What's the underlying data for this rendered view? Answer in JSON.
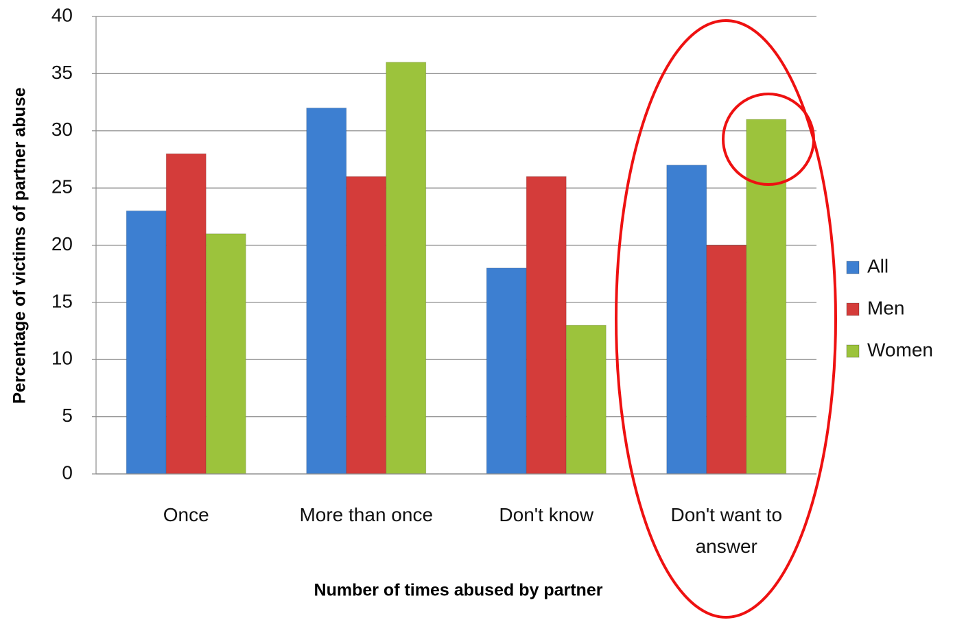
{
  "chart_data": {
    "type": "bar",
    "x_label": "Number of times abused by partner",
    "y_label": "Percentage of victims of partner abuse",
    "categories": [
      "Once",
      "More than once",
      "Don't know",
      "Don't want to answer"
    ],
    "series": [
      {
        "name": "All",
        "color": "#3d7fd1",
        "values": [
          23,
          32,
          18,
          27
        ]
      },
      {
        "name": "Men",
        "color": "#d43c3a",
        "values": [
          28,
          26,
          26,
          20
        ]
      },
      {
        "name": "Women",
        "color": "#9cc33c",
        "values": [
          21,
          36,
          13,
          31
        ]
      }
    ],
    "ylim": [
      0,
      40
    ],
    "yticks": [
      0,
      5,
      10,
      15,
      20,
      25,
      30,
      35,
      40
    ],
    "grid": true,
    "legend": "right"
  }
}
